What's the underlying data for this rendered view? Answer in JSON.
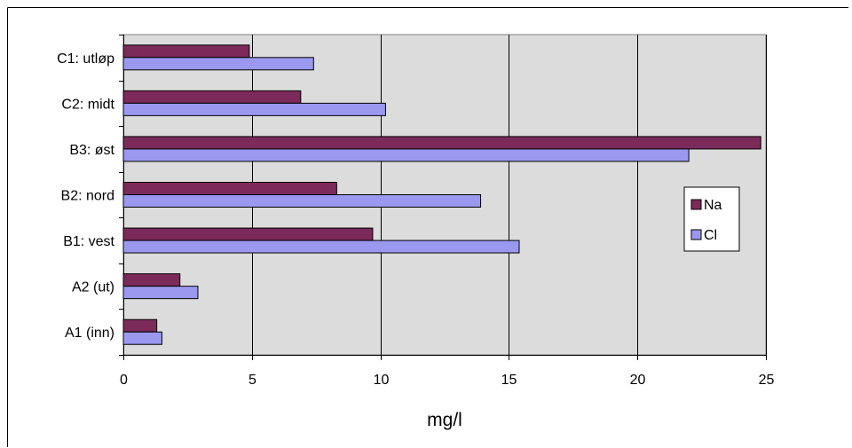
{
  "chart_data": {
    "type": "bar",
    "orientation": "horizontal",
    "title": "",
    "xlabel": "mg/l",
    "ylabel": "",
    "xlim": [
      0,
      25
    ],
    "x_ticks": [
      0,
      5,
      10,
      15,
      20,
      25
    ],
    "grid": "vertical",
    "legend_position": "right",
    "categories": [
      "C1: utløp",
      "C2: midt",
      "B3: øst",
      "B2: nord",
      "B1: vest",
      "A2 (ut)",
      "A1 (inn)"
    ],
    "series": [
      {
        "name": "Na",
        "color": "#7b2a5a",
        "values": [
          4.9,
          6.9,
          24.8,
          8.3,
          9.7,
          2.2,
          1.3
        ]
      },
      {
        "name": "Cl",
        "color": "#9a98ef",
        "values": [
          7.4,
          10.2,
          22.0,
          13.9,
          15.4,
          2.9,
          1.5
        ]
      }
    ],
    "plot_background": "#dcdcdc"
  }
}
